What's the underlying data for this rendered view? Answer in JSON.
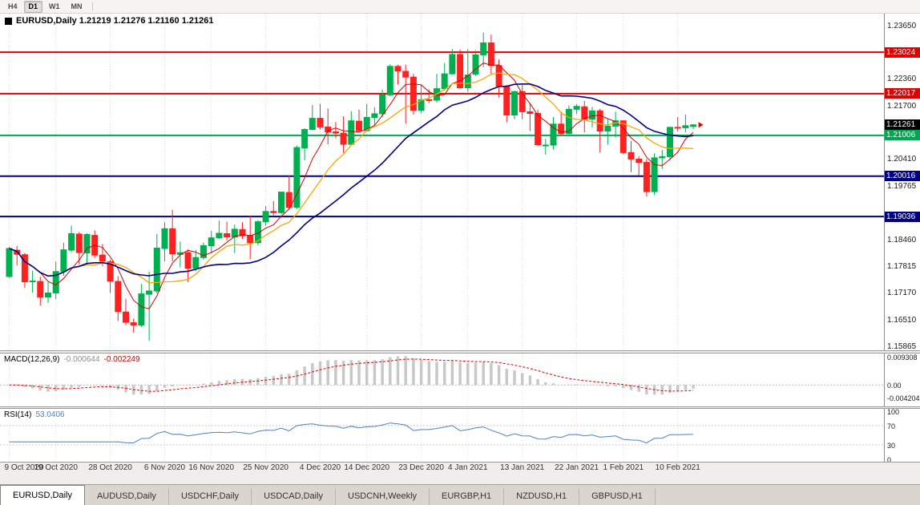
{
  "toolbar": {
    "timeframes": [
      {
        "label": "H4",
        "active": false
      },
      {
        "label": "D1",
        "active": true
      },
      {
        "label": "W1",
        "active": false
      },
      {
        "label": "MN",
        "active": false
      }
    ]
  },
  "chart": {
    "title": "EURUSD,Daily 1.21219 1.21276 1.21160 1.21261"
  },
  "macd_panel": {
    "name": "MACD(12,26,9)",
    "value_main": "-0.000644",
    "value_signal": "-0.002249",
    "scale": [
      "0.009308",
      "0.00",
      "-0.004204"
    ]
  },
  "rsi_panel": {
    "name": "RSI(14)",
    "value": "53.0406",
    "scale": [
      "100",
      "70",
      "30",
      "0"
    ]
  },
  "tabs": [
    {
      "label": "EURUSD,Daily",
      "active": true
    },
    {
      "label": "AUDUSD,Daily",
      "active": false
    },
    {
      "label": "USDCHF,Daily",
      "active": false
    },
    {
      "label": "USDCAD,Daily",
      "active": false
    },
    {
      "label": "USDCNH,Weekly",
      "active": false
    },
    {
      "label": "EURGBP,H1",
      "active": false
    },
    {
      "label": "NZDUSD,H1",
      "active": false
    },
    {
      "label": "GBPUSD,H1",
      "active": false
    }
  ],
  "colors": {
    "bull": "#00b050",
    "bear": "#ff2020",
    "macd_hist": "#c8c8c8",
    "macd_signal": "#e00000",
    "rsi": "#4f81bd",
    "price_label_bg": "#000000",
    "marker": "#e00000",
    "level_red": "#e00000",
    "level_green": "#00a651",
    "level_navy": "#000080"
  },
  "chart_data": {
    "type": "candlestick",
    "symbol": "EURUSD",
    "timeframe": "Daily",
    "y_range": [
      1.1579,
      1.2396
    ],
    "y_ticks": [
      "1.23650",
      "1.22360",
      "1.21700",
      "1.20410",
      "1.19765",
      "1.18460",
      "1.17815",
      "1.17170",
      "1.16510",
      "1.15865"
    ],
    "current_price_label": "1.21261",
    "hlines": [
      {
        "price": 1.23024,
        "label": "1.23024",
        "color": "#e00000"
      },
      {
        "price": 1.22017,
        "label": "1.22017",
        "color": "#e00000"
      },
      {
        "price": 1.21006,
        "label": "1.21006",
        "color": "#00a651"
      },
      {
        "price": 1.20016,
        "label": "1.20016",
        "color": "#000080"
      },
      {
        "price": 1.19036,
        "label": "1.19036",
        "color": "#000080"
      }
    ],
    "moving_averages": [
      {
        "name": "fast-ma",
        "period": 5,
        "color": "#d40000",
        "width": 1
      },
      {
        "name": "medium-ma",
        "period": 10,
        "color": "#f5a800",
        "width": 1.3
      },
      {
        "name": "slow-ma",
        "period": 20,
        "color": "#000080",
        "width": 1.6
      }
    ],
    "x_ticks": [
      {
        "index": 0,
        "label": "9 Oct 2020"
      },
      {
        "index": 6,
        "label": "19 Oct 2020"
      },
      {
        "index": 13,
        "label": "28 Oct 2020"
      },
      {
        "index": 20,
        "label": "6 Nov 2020"
      },
      {
        "index": 26,
        "label": "16 Nov 2020"
      },
      {
        "index": 33,
        "label": "25 Nov 2020"
      },
      {
        "index": 40,
        "label": "4 Dec 2020"
      },
      {
        "index": 46,
        "label": "14 Dec 2020"
      },
      {
        "index": 53,
        "label": "23 Dec 2020"
      },
      {
        "index": 59,
        "label": "4 Jan 2021"
      },
      {
        "index": 66,
        "label": "13 Jan 2021"
      },
      {
        "index": 73,
        "label": "22 Jan 2021"
      },
      {
        "index": 79,
        "label": "1 Feb 2021"
      },
      {
        "index": 86,
        "label": "10 Feb 2021"
      }
    ],
    "dates": [
      "9 Oct 2020",
      "12 Oct 2020",
      "13 Oct 2020",
      "14 Oct 2020",
      "15 Oct 2020",
      "16 Oct 2020",
      "19 Oct 2020",
      "20 Oct 2020",
      "21 Oct 2020",
      "22 Oct 2020",
      "23 Oct 2020",
      "26 Oct 2020",
      "27 Oct 2020",
      "28 Oct 2020",
      "29 Oct 2020",
      "30 Oct 2020",
      "2 Nov 2020",
      "3 Nov 2020",
      "4 Nov 2020",
      "5 Nov 2020",
      "6 Nov 2020",
      "9 Nov 2020",
      "10 Nov 2020",
      "11 Nov 2020",
      "12 Nov 2020",
      "13 Nov 2020",
      "16 Nov 2020",
      "17 Nov 2020",
      "18 Nov 2020",
      "19 Nov 2020",
      "20 Nov 2020",
      "23 Nov 2020",
      "24 Nov 2020",
      "25 Nov 2020",
      "26 Nov 2020",
      "27 Nov 2020",
      "30 Nov 2020",
      "1 Dec 2020",
      "2 Dec 2020",
      "3 Dec 2020",
      "4 Dec 2020",
      "7 Dec 2020",
      "8 Dec 2020",
      "9 Dec 2020",
      "10 Dec 2020",
      "11 Dec 2020",
      "14 Dec 2020",
      "15 Dec 2020",
      "16 Dec 2020",
      "17 Dec 2020",
      "18 Dec 2020",
      "21 Dec 2020",
      "22 Dec 2020",
      "23 Dec 2020",
      "24 Dec 2020",
      "28 Dec 2020",
      "29 Dec 2020",
      "30 Dec 2020",
      "31 Dec 2020",
      "4 Jan 2021",
      "5 Jan 2021",
      "6 Jan 2021",
      "7 Jan 2021",
      "8 Jan 2021",
      "11 Jan 2021",
      "12 Jan 2021",
      "13 Jan 2021",
      "14 Jan 2021",
      "15 Jan 2021",
      "18 Jan 2021",
      "19 Jan 2021",
      "20 Jan 2021",
      "21 Jan 2021",
      "22 Jan 2021",
      "25 Jan 2021",
      "26 Jan 2021",
      "27 Jan 2021",
      "28 Jan 2021",
      "29 Jan 2021",
      "1 Feb 2021",
      "2 Feb 2021",
      "3 Feb 2021",
      "4 Feb 2021",
      "5 Feb 2021",
      "8 Feb 2021",
      "9 Feb 2021",
      "10 Feb 2021",
      "11 Feb 2021",
      "12 Feb 2021"
    ],
    "open": [
      1.1758,
      1.1822,
      1.1811,
      1.1745,
      1.1746,
      1.1708,
      1.1718,
      1.177,
      1.1822,
      1.1861,
      1.1815,
      1.1858,
      1.181,
      1.1794,
      1.1746,
      1.1672,
      1.1646,
      1.164,
      1.1715,
      1.1723,
      1.1826,
      1.1874,
      1.1812,
      1.1816,
      1.1778,
      1.1804,
      1.1833,
      1.1852,
      1.1862,
      1.1854,
      1.1872,
      1.1857,
      1.184,
      1.1891,
      1.1916,
      1.1913,
      1.1962,
      1.1926,
      1.207,
      1.2115,
      1.2142,
      1.2121,
      1.2109,
      1.2106,
      1.2079,
      1.2135,
      1.2112,
      1.2144,
      1.2153,
      1.2199,
      1.2268,
      1.2256,
      1.2242,
      1.2161,
      1.2187,
      1.2186,
      1.2214,
      1.225,
      1.2297,
      1.2216,
      1.2249,
      1.2296,
      1.2325,
      1.227,
      1.2219,
      1.215,
      1.2207,
      1.2158,
      1.2154,
      1.2077,
      1.2077,
      1.2128,
      1.2105,
      1.2164,
      1.217,
      1.214,
      1.216,
      1.2111,
      1.2123,
      1.2136,
      1.2059,
      1.2043,
      1.2035,
      1.1964,
      1.2046,
      1.2049,
      1.212,
      1.2119,
      1.2122
    ],
    "high": [
      1.183,
      1.1832,
      1.1815,
      1.1772,
      1.1758,
      1.1745,
      1.1794,
      1.184,
      1.1881,
      1.1866,
      1.1863,
      1.187,
      1.1837,
      1.1799,
      1.1759,
      1.1704,
      1.1656,
      1.174,
      1.177,
      1.1861,
      1.189,
      1.192,
      1.1843,
      1.1824,
      1.1823,
      1.184,
      1.1869,
      1.1894,
      1.1891,
      1.1884,
      1.189,
      1.1906,
      1.1895,
      1.1929,
      1.1941,
      1.1964,
      1.2003,
      1.2076,
      1.2118,
      1.2174,
      1.2177,
      1.2166,
      1.2133,
      1.2147,
      1.2159,
      1.2163,
      1.2177,
      1.2169,
      1.2212,
      1.2273,
      1.2272,
      1.2272,
      1.225,
      1.2222,
      1.2212,
      1.225,
      1.2276,
      1.231,
      1.2309,
      1.231,
      1.2307,
      1.235,
      1.2345,
      1.2285,
      1.2223,
      1.2209,
      1.2223,
      1.2178,
      1.2163,
      1.2092,
      1.2145,
      1.2158,
      1.2173,
      1.2176,
      1.2184,
      1.217,
      1.2165,
      1.2142,
      1.2158,
      1.2137,
      1.2087,
      1.205,
      1.2043,
      1.2057,
      1.2065,
      1.2122,
      1.2145,
      1.2151,
      1.2128
    ],
    "low": [
      1.1755,
      1.1785,
      1.1731,
      1.1719,
      1.1688,
      1.1694,
      1.1703,
      1.176,
      1.1817,
      1.1787,
      1.1786,
      1.1803,
      1.1783,
      1.1718,
      1.165,
      1.164,
      1.1622,
      1.1635,
      1.1602,
      1.1717,
      1.1795,
      1.1795,
      1.178,
      1.1745,
      1.1771,
      1.1799,
      1.1814,
      1.1849,
      1.1846,
      1.1815,
      1.1849,
      1.18,
      1.1833,
      1.1881,
      1.1906,
      1.1909,
      1.1923,
      1.1922,
      1.204,
      1.2113,
      1.2115,
      1.2079,
      1.2094,
      1.2058,
      1.2076,
      1.211,
      1.211,
      1.2121,
      1.2145,
      1.2195,
      1.2224,
      1.2129,
      1.2151,
      1.2154,
      1.2179,
      1.218,
      1.2209,
      1.2247,
      1.2214,
      1.2206,
      1.2245,
      1.2266,
      1.225,
      1.2193,
      1.2132,
      1.214,
      1.214,
      1.2111,
      1.2075,
      1.2054,
      1.2066,
      1.2101,
      1.2103,
      1.2152,
      1.2108,
      1.212,
      1.2059,
      1.2078,
      1.2095,
      1.2055,
      1.2011,
      1.2003,
      1.1952,
      1.1956,
      1.2019,
      1.2041,
      1.211,
      1.2108,
      1.2116
    ],
    "close": [
      1.1826,
      1.1812,
      1.1745,
      1.1747,
      1.1708,
      1.1718,
      1.177,
      1.1823,
      1.1862,
      1.1816,
      1.186,
      1.181,
      1.1795,
      1.1747,
      1.1673,
      1.1647,
      1.164,
      1.1716,
      1.1723,
      1.1827,
      1.1874,
      1.1813,
      1.1816,
      1.1778,
      1.1804,
      1.1833,
      1.1852,
      1.1863,
      1.1854,
      1.1873,
      1.1857,
      1.184,
      1.1891,
      1.1916,
      1.1913,
      1.1963,
      1.1926,
      1.2071,
      1.2115,
      1.2142,
      1.2121,
      1.2109,
      1.2106,
      1.2079,
      1.2136,
      1.2112,
      1.2144,
      1.2153,
      1.2199,
      1.2268,
      1.2257,
      1.2242,
      1.2161,
      1.2187,
      1.2186,
      1.2214,
      1.225,
      1.2297,
      1.2216,
      1.2247,
      1.2296,
      1.2325,
      1.227,
      1.222,
      1.215,
      1.2207,
      1.2158,
      1.2154,
      1.2078,
      1.2077,
      1.2128,
      1.2105,
      1.2164,
      1.2171,
      1.214,
      1.216,
      1.2111,
      1.2123,
      1.2136,
      1.2059,
      1.2043,
      1.2035,
      1.1964,
      1.2046,
      1.2049,
      1.212,
      1.2119,
      1.2124,
      1.21261
    ],
    "indicators": [
      {
        "name": "MACD",
        "params": [
          12,
          26,
          9
        ]
      },
      {
        "name": "RSI",
        "params": [
          14
        ]
      }
    ]
  }
}
